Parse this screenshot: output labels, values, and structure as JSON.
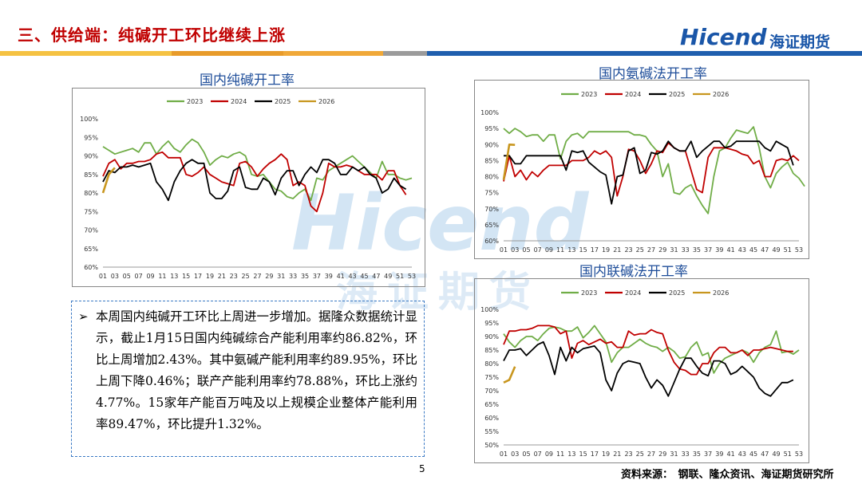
{
  "header": {
    "title": "三、供给端：纯碱开工环比继续上涨",
    "logo_en": "Hicend",
    "logo_cn": "海证期货"
  },
  "watermark": {
    "en": "Hicend",
    "cn": "海证期货"
  },
  "colors": {
    "y2023": "#70ad47",
    "y2024": "#c00000",
    "y2025": "#000000",
    "y2026": "#c8961e",
    "title_red": "#c00000",
    "accent_blue": "#1f4e9a"
  },
  "text_box": {
    "bullet": "➢",
    "body": "本周国内纯碱开工环比上周进一步增加。据隆众数据统计显示，截止1月15日国内纯碱综合产能利用率约86.82%，环比上周增加2.43%。其中氨碱产能利用率约89.95%，环比上周下降0.46%；联产产能利用率约78.88%，环比上涨约4.77%。15家年产能百万吨及以上规模企业整体产能利用率89.47%，环比提升1.32%。"
  },
  "footer": {
    "page_number": "5",
    "source": "资料来源：　钢联、隆众资讯、海证期货研究所"
  },
  "chart_data": [
    {
      "id": "c1",
      "type": "line",
      "title": "国内纯碱开工率",
      "ylim": [
        60,
        100
      ],
      "yticks": [
        "60%",
        "65%",
        "70%",
        "75%",
        "80%",
        "85%",
        "90%",
        "95%",
        "100%"
      ],
      "ytick_values": [
        60,
        65,
        70,
        75,
        80,
        85,
        90,
        95,
        100
      ],
      "xticks": [
        "01",
        "03",
        "05",
        "07",
        "09",
        "11",
        "13",
        "15",
        "17",
        "19",
        "21",
        "23",
        "25",
        "27",
        "29",
        "31",
        "33",
        "35",
        "37",
        "39",
        "41",
        "43",
        "45",
        "47",
        "49",
        "51",
        "53"
      ],
      "legend": [
        "2023",
        "2024",
        "2025",
        "2026"
      ],
      "legend_position": "top",
      "series": [
        {
          "name": "2023",
          "values": [
            92.5,
            91.5,
            90.5,
            91,
            91.5,
            92,
            91,
            93.5,
            93.5,
            90.5,
            92.5,
            94,
            92,
            91,
            93,
            94.5,
            93.5,
            91,
            87.5,
            89,
            90,
            89.5,
            90.5,
            91,
            90,
            85,
            84.5,
            85,
            83,
            81,
            80.5,
            79,
            78.5,
            80,
            81,
            78,
            84,
            83.5,
            86,
            87,
            88,
            89,
            90,
            88.5,
            87,
            85.5,
            84,
            88.5,
            85,
            85,
            84,
            83.5,
            84
          ]
        },
        {
          "name": "2024",
          "values": [
            84.5,
            88,
            89,
            86.5,
            88,
            88,
            88.5,
            88.5,
            89,
            90.5,
            91,
            89.5,
            89.5,
            89.5,
            85,
            84.5,
            85.5,
            87,
            85,
            84,
            83,
            82.5,
            82,
            88,
            88.5,
            87,
            84.5,
            86.5,
            88,
            89,
            90.5,
            89,
            82,
            83,
            82,
            76.5,
            75,
            80,
            88,
            87,
            87,
            87.5,
            87,
            86,
            85,
            85,
            85,
            83.5,
            86,
            86,
            82,
            79.5
          ]
        },
        {
          "name": "2025",
          "values": [
            83,
            86,
            85.5,
            87,
            87,
            87.5,
            87,
            87.5,
            88,
            83,
            81,
            78,
            83,
            86,
            88,
            89,
            88,
            88,
            80,
            78.5,
            78.5,
            80.5,
            86,
            87,
            81.5,
            81,
            81,
            84,
            83,
            79.5,
            84,
            86,
            86,
            82,
            85,
            87,
            85.5,
            89,
            89,
            88,
            85,
            85,
            87,
            86,
            87,
            85,
            84,
            80,
            81,
            84,
            82,
            81
          ]
        },
        {
          "name": "2026",
          "values": [
            80,
            85,
            86.8
          ]
        }
      ]
    },
    {
      "id": "c2",
      "type": "line",
      "title": "国内氨碱法开工率",
      "ylim": [
        60,
        100
      ],
      "yticks": [
        "60%",
        "65%",
        "70%",
        "75%",
        "80%",
        "85%",
        "90%",
        "95%",
        "100%"
      ],
      "ytick_values": [
        60,
        65,
        70,
        75,
        80,
        85,
        90,
        95,
        100
      ],
      "xticks": [
        "01",
        "03",
        "05",
        "07",
        "09",
        "11",
        "13",
        "15",
        "17",
        "19",
        "21",
        "23",
        "25",
        "27",
        "29",
        "31",
        "33",
        "35",
        "37",
        "39",
        "41",
        "43",
        "45",
        "47",
        "49",
        "51",
        "53"
      ],
      "legend": [
        "2023",
        "2024",
        "2025",
        "2026"
      ],
      "legend_position": "top",
      "series": [
        {
          "name": "2023",
          "values": [
            95,
            93.5,
            95,
            94,
            92.5,
            93,
            93,
            91,
            93,
            93,
            85.5,
            91,
            93,
            93.5,
            92,
            94,
            94,
            94,
            94,
            94,
            94,
            94,
            94,
            93,
            93,
            92.5,
            90,
            88,
            80,
            84,
            75,
            74.5,
            76.5,
            77.5,
            74,
            71,
            68.5,
            80,
            88,
            89,
            92,
            94.5,
            94,
            93.5,
            95.5,
            89,
            80,
            76.5,
            81,
            83,
            84.5,
            81,
            79.5,
            77
          ]
        },
        {
          "name": "2024",
          "values": [
            78.5,
            86.5,
            80,
            82,
            79,
            81.5,
            80,
            82,
            83.5,
            83.5,
            83.5,
            83.5,
            85,
            85,
            85,
            86,
            88,
            87,
            88,
            86,
            74,
            80,
            88.5,
            88,
            85,
            81,
            84,
            88,
            87.5,
            90.5,
            89,
            88,
            88,
            82,
            76,
            75,
            86,
            89,
            89,
            89,
            88.5,
            88,
            87,
            86.5,
            84,
            85,
            80,
            80,
            85,
            85.5,
            85,
            86.5,
            85
          ]
        },
        {
          "name": "2025",
          "values": [
            86.5,
            86.5,
            84,
            84,
            86.5,
            86.5,
            86.5,
            86.5,
            86.5,
            86.5,
            86.5,
            82,
            88,
            87.5,
            88,
            84.5,
            83,
            81.5,
            80.5,
            71.5,
            80,
            80.5,
            88,
            89,
            81,
            82,
            87.5,
            87,
            88,
            91,
            89,
            88,
            88,
            91,
            86,
            88,
            89.5,
            91,
            91,
            89,
            89.5,
            91,
            91,
            91,
            91,
            91,
            89,
            88,
            91,
            90,
            89,
            83.5
          ]
        },
        {
          "name": "2026",
          "values": [
            79,
            90,
            89.9
          ]
        }
      ]
    },
    {
      "id": "c3",
      "type": "line",
      "title": "国内联碱法开工率",
      "ylim": [
        50,
        100
      ],
      "yticks": [
        "50%",
        "55%",
        "60%",
        "65%",
        "70%",
        "75%",
        "80%",
        "85%",
        "90%",
        "95%",
        "100%"
      ],
      "ytick_values": [
        50,
        55,
        60,
        65,
        70,
        75,
        80,
        85,
        90,
        95,
        100
      ],
      "xticks": [
        "01",
        "03",
        "05",
        "07",
        "09",
        "11",
        "13",
        "15",
        "17",
        "19",
        "21",
        "23",
        "25",
        "27",
        "29",
        "31",
        "33",
        "35",
        "37",
        "39",
        "41",
        "43",
        "45",
        "47",
        "49",
        "51",
        "53"
      ],
      "legend": [
        "2023",
        "2024",
        "2025",
        "2026"
      ],
      "legend_position": "top",
      "series": [
        {
          "name": "2023",
          "values": [
            91,
            88,
            86,
            88.5,
            90,
            90,
            88.5,
            91,
            93,
            93.5,
            93,
            92,
            92,
            93.5,
            89.5,
            91.5,
            94,
            91,
            88,
            80.5,
            84,
            86,
            86,
            87.5,
            89,
            87.5,
            86.5,
            86,
            84.5,
            86,
            84.5,
            82,
            82.5,
            86,
            88,
            83,
            84,
            76.5,
            80,
            82,
            83,
            84,
            85,
            84,
            80.5,
            84,
            86,
            87,
            92,
            84,
            84.5,
            83.5,
            85
          ]
        },
        {
          "name": "2024",
          "values": [
            87,
            92,
            92,
            92.5,
            92.5,
            93,
            94,
            94,
            94,
            93.5,
            91,
            92,
            82,
            87.5,
            88.5,
            87,
            88,
            89,
            87.5,
            88,
            86,
            86,
            92,
            90.5,
            91,
            91,
            92.5,
            91.5,
            91,
            85,
            80.5,
            78,
            77.5,
            76,
            76,
            80,
            80,
            84,
            86,
            86,
            84,
            84,
            85,
            83,
            85,
            85,
            85.5,
            86,
            85.5,
            85,
            84.5,
            84.5
          ]
        },
        {
          "name": "2025",
          "values": [
            81,
            85,
            85,
            85.5,
            83,
            85,
            87,
            88,
            83,
            76,
            86,
            81,
            86,
            84,
            85.5,
            86,
            86.5,
            84,
            74,
            70,
            76.5,
            80,
            81,
            80.5,
            80,
            75,
            71,
            74,
            72,
            68,
            73,
            78,
            82,
            82,
            79,
            76.5,
            75.5,
            81,
            81,
            80,
            76,
            77,
            79,
            77,
            75,
            71,
            69,
            68,
            70.5,
            73,
            73,
            74
          ]
        },
        {
          "name": "2026",
          "values": [
            73,
            74,
            78.9
          ]
        }
      ]
    }
  ]
}
